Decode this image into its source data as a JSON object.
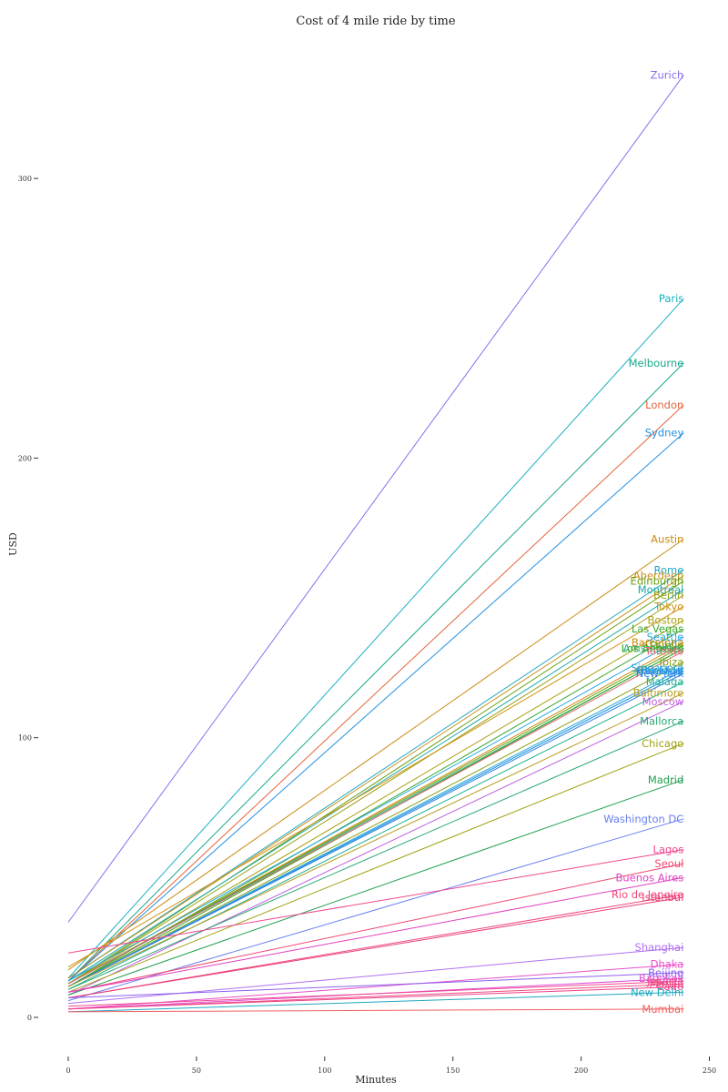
{
  "chart_data": {
    "type": "line",
    "title": "Cost of 4 mile ride by time",
    "xlabel": "Minutes",
    "ylabel": "USD",
    "xlim": [
      0,
      250
    ],
    "ylim": [
      -15,
      355
    ],
    "x_ticks": [
      0,
      50,
      100,
      150,
      200,
      250
    ],
    "y_ticks": [
      0,
      100,
      200,
      300
    ],
    "grid": false,
    "legend": "none",
    "x": [
      0,
      240
    ],
    "series": [
      {
        "name": "Zurich",
        "color": "#8c6cf0",
        "values": [
          34,
          337
        ]
      },
      {
        "name": "Paris",
        "color": "#1ab0c0",
        "values": [
          14,
          257
        ]
      },
      {
        "name": "Melbourne",
        "color": "#14a88a",
        "values": [
          13,
          234
        ]
      },
      {
        "name": "London",
        "color": "#e5633a",
        "values": [
          13,
          219
        ]
      },
      {
        "name": "Sydney",
        "color": "#2590e0",
        "values": [
          13,
          209
        ]
      },
      {
        "name": "Austin",
        "color": "#c88a10",
        "values": [
          17,
          171
        ]
      },
      {
        "name": "Rome",
        "color": "#22a8c0",
        "values": [
          14,
          160
        ]
      },
      {
        "name": "Aberdeen",
        "color": "#c8901a",
        "values": [
          14,
          158
        ]
      },
      {
        "name": "Edinburgh",
        "color": "#6aa010",
        "values": [
          12,
          156
        ]
      },
      {
        "name": "Montreal",
        "color": "#1aa8a8",
        "values": [
          13,
          153
        ]
      },
      {
        "name": "Berlin",
        "color": "#9aa010",
        "values": [
          12,
          151
        ]
      },
      {
        "name": "Tokyo",
        "color": "#d09010",
        "values": [
          18,
          147
        ]
      },
      {
        "name": "Boston",
        "color": "#a8a010",
        "values": [
          12,
          142
        ]
      },
      {
        "name": "Las Vegas",
        "color": "#3aa830",
        "values": [
          11,
          139
        ]
      },
      {
        "name": "Seattle",
        "color": "#28a8e0",
        "values": [
          13,
          136
        ]
      },
      {
        "name": "Barcelona",
        "color": "#d08a10",
        "values": [
          12,
          134
        ]
      },
      {
        "name": "Dublin",
        "color": "#6aa010",
        "values": [
          12,
          133
        ]
      },
      {
        "name": "Amsterdam",
        "color": "#28b090",
        "values": [
          12,
          132
        ]
      },
      {
        "name": "Los Angeles",
        "color": "#38a820",
        "values": [
          11,
          132
        ]
      },
      {
        "name": "Toronto",
        "color": "#e26a78",
        "values": [
          12,
          131
        ]
      },
      {
        "name": "Ibiza",
        "color": "#8aa010",
        "values": [
          11,
          127
        ]
      },
      {
        "name": "Singapore",
        "color": "#28a8d8",
        "values": [
          11,
          125
        ]
      },
      {
        "name": "Houston",
        "color": "#2aa0e8",
        "values": [
          11,
          124
        ]
      },
      {
        "name": "Frankfurt",
        "color": "#2898e0",
        "values": [
          11,
          124
        ]
      },
      {
        "name": "New York",
        "color": "#3080e0",
        "values": [
          11,
          123
        ]
      },
      {
        "name": "Malaga",
        "color": "#20b090",
        "values": [
          10,
          120
        ]
      },
      {
        "name": "Baltimore",
        "color": "#b89a20",
        "values": [
          11,
          116
        ]
      },
      {
        "name": "Moscow",
        "color": "#c060e0",
        "values": [
          8,
          113
        ]
      },
      {
        "name": "Mallorca",
        "color": "#28a870",
        "values": [
          10,
          106
        ]
      },
      {
        "name": "Chicago",
        "color": "#a0a010",
        "values": [
          9,
          98
        ]
      },
      {
        "name": "Madrid",
        "color": "#20a050",
        "values": [
          8,
          85
        ]
      },
      {
        "name": "Washington DC",
        "color": "#6a80f0",
        "values": [
          6,
          71
        ]
      },
      {
        "name": "Lagos",
        "color": "#f04890",
        "values": [
          23,
          60
        ]
      },
      {
        "name": "Seoul",
        "color": "#f04870",
        "values": [
          9,
          55
        ]
      },
      {
        "name": "Buenos Aires",
        "color": "#e040c0",
        "values": [
          9,
          50
        ]
      },
      {
        "name": "Rio de Janeiro",
        "color": "#f04878",
        "values": [
          7,
          44
        ]
      },
      {
        "name": "Istanbul",
        "color": "#e84078",
        "values": [
          7,
          43
        ]
      },
      {
        "name": "Shanghai",
        "color": "#b070f0",
        "values": [
          5,
          25
        ]
      },
      {
        "name": "Dhaka",
        "color": "#e850c8",
        "values": [
          3,
          19
        ]
      },
      {
        "name": "Beijing",
        "color": "#8a60f0",
        "values": [
          7,
          16
        ]
      },
      {
        "name": "Bangkok",
        "color": "#e050d8",
        "values": [
          3,
          14
        ]
      },
      {
        "name": "Jakarta",
        "color": "#f04890",
        "values": [
          4,
          13
        ]
      },
      {
        "name": "Manila",
        "color": "#f05080",
        "values": [
          3,
          12
        ]
      },
      {
        "name": "Cairo",
        "color": "#f0408a",
        "values": [
          3,
          11
        ]
      },
      {
        "name": "New Delhi",
        "color": "#20a8c0",
        "values": [
          2,
          9
        ]
      },
      {
        "name": "Mumbai",
        "color": "#f06060",
        "values": [
          2,
          3
        ]
      }
    ]
  }
}
